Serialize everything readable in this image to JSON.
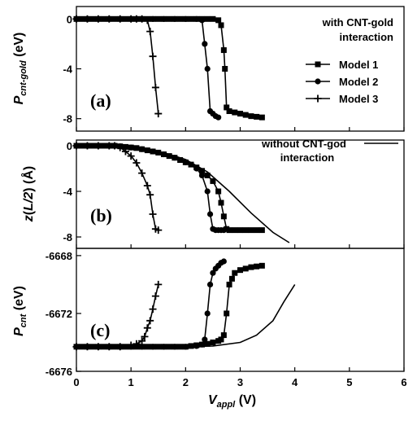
{
  "chart_data": [
    {
      "panel": "(a)",
      "type": "line",
      "ylabel_parts": [
        "P",
        "cnt-gold",
        " (eV)"
      ],
      "xlim": [
        0,
        6
      ],
      "ylim": [
        -9,
        1
      ],
      "yticks": [
        0,
        -4,
        -8
      ],
      "ytick_labels": [
        "0",
        "-4",
        "-8"
      ],
      "legend_title_lines": [
        "with CNT-gold",
        "interaction"
      ],
      "legend_placement": "right",
      "series": [
        {
          "name": "Model 1",
          "marker": "square",
          "x": [
            0,
            0.1,
            0.2,
            0.3,
            0.4,
            0.5,
            0.6,
            0.7,
            0.8,
            0.9,
            1.0,
            1.1,
            1.2,
            1.3,
            1.4,
            1.5,
            1.6,
            1.7,
            1.8,
            1.9,
            2.0,
            2.1,
            2.2,
            2.3,
            2.4,
            2.5,
            2.6,
            2.65,
            2.7,
            2.72,
            2.75,
            2.8,
            2.9,
            3.0,
            3.1,
            3.2,
            3.3,
            3.4
          ],
          "y": [
            0,
            0,
            0,
            0,
            0,
            0,
            0,
            0,
            0,
            0,
            0,
            0,
            0,
            0,
            0,
            0,
            0,
            0,
            0,
            0,
            0,
            0,
            0,
            0,
            0,
            0,
            -0.1,
            -0.5,
            -2.5,
            -4.0,
            -7.1,
            -7.4,
            -7.5,
            -7.6,
            -7.7,
            -7.8,
            -7.85,
            -7.9
          ]
        },
        {
          "name": "Model 2",
          "marker": "circle",
          "x": [
            0,
            0.2,
            0.4,
            0.6,
            0.8,
            1.0,
            1.2,
            1.4,
            1.6,
            1.8,
            2.0,
            2.2,
            2.3,
            2.35,
            2.4,
            2.45,
            2.5,
            2.55,
            2.6
          ],
          "y": [
            0,
            0,
            0,
            0,
            0,
            0,
            0,
            0,
            0,
            0,
            0,
            0,
            -0.1,
            -2.0,
            -4.0,
            -7.4,
            -7.6,
            -7.8,
            -7.9
          ]
        },
        {
          "name": "Model 3",
          "marker": "plus",
          "x": [
            0,
            0.2,
            0.4,
            0.6,
            0.8,
            1.0,
            1.1,
            1.2,
            1.3,
            1.35,
            1.4,
            1.45,
            1.5
          ],
          "y": [
            0,
            0,
            0,
            0,
            0,
            0,
            0,
            0,
            -0.1,
            -1.0,
            -3.0,
            -5.5,
            -7.6
          ]
        }
      ]
    },
    {
      "panel": "(b)",
      "type": "line",
      "ylabel_parts": [
        "z",
        "(",
        "L/2",
        ") (Å)"
      ],
      "xlim": [
        0,
        6
      ],
      "ylim": [
        -9,
        0.5
      ],
      "yticks": [
        0,
        -4,
        -8
      ],
      "ytick_labels": [
        "0",
        "-4",
        "-8"
      ],
      "legend_title_lines": [
        "without CNT-god",
        "interaction"
      ],
      "legend_placement": "top-right",
      "series": [
        {
          "name": "Model 1",
          "marker": "square",
          "x": [
            0,
            0.1,
            0.2,
            0.3,
            0.4,
            0.5,
            0.6,
            0.7,
            0.8,
            0.9,
            1.0,
            1.1,
            1.2,
            1.3,
            1.4,
            1.5,
            1.6,
            1.7,
            1.8,
            1.9,
            2.0,
            2.1,
            2.2,
            2.3,
            2.4,
            2.5,
            2.6,
            2.65,
            2.7,
            2.75,
            2.8,
            2.9,
            3.0,
            3.1,
            3.2,
            3.3,
            3.4
          ],
          "y": [
            0,
            0,
            0,
            0,
            0,
            0,
            0,
            0,
            -0.05,
            -0.1,
            -0.15,
            -0.2,
            -0.3,
            -0.4,
            -0.5,
            -0.6,
            -0.75,
            -0.9,
            -1.05,
            -1.25,
            -1.45,
            -1.65,
            -1.9,
            -2.2,
            -2.6,
            -3.1,
            -4.0,
            -5.0,
            -6.2,
            -7.3,
            -7.4,
            -7.4,
            -7.4,
            -7.4,
            -7.4,
            -7.4,
            -7.4
          ]
        },
        {
          "name": "Model 2",
          "marker": "circle",
          "x": [
            0,
            0.2,
            0.4,
            0.6,
            0.8,
            1.0,
            1.2,
            1.4,
            1.6,
            1.8,
            2.0,
            2.2,
            2.3,
            2.4,
            2.45,
            2.5,
            2.55,
            2.6,
            2.65,
            2.7
          ],
          "y": [
            0,
            0,
            0,
            0,
            -0.05,
            -0.15,
            -0.3,
            -0.5,
            -0.75,
            -1.05,
            -1.45,
            -2.0,
            -2.6,
            -4.0,
            -6.0,
            -7.3,
            -7.4,
            -7.4,
            -7.4,
            -7.4
          ]
        },
        {
          "name": "Model 3",
          "marker": "plus",
          "x": [
            0,
            0.2,
            0.4,
            0.6,
            0.7,
            0.8,
            0.9,
            1.0,
            1.1,
            1.2,
            1.3,
            1.35,
            1.4,
            1.45,
            1.5
          ],
          "y": [
            0,
            0,
            0,
            0,
            0,
            -0.15,
            -0.5,
            -0.9,
            -1.5,
            -2.4,
            -3.5,
            -4.3,
            -6.0,
            -7.3,
            -7.4
          ]
        },
        {
          "name": "without CNT-god interaction",
          "marker": "none",
          "x": [
            0,
            0.8,
            1.2,
            1.6,
            2.0,
            2.4,
            2.8,
            3.2,
            3.6,
            3.9
          ],
          "y": [
            0,
            0,
            -0.25,
            -0.6,
            -1.2,
            -2.3,
            -4.0,
            -5.9,
            -7.6,
            -8.5
          ]
        }
      ]
    },
    {
      "panel": "(c)",
      "type": "line",
      "ylabel_parts": [
        "P",
        "cnt",
        " (eV)"
      ],
      "xlabel_parts": [
        "V",
        "appl",
        " (V)"
      ],
      "xlim": [
        0,
        6
      ],
      "xticks": [
        0,
        1,
        2,
        3,
        4,
        5,
        6
      ],
      "xtick_labels": [
        "0",
        "1",
        "2",
        "3",
        "4",
        "5",
        "6"
      ],
      "ylim": [
        -6676,
        -6667.5
      ],
      "yticks": [
        -6668,
        -6672,
        -6676
      ],
      "ytick_labels": [
        "-6668",
        "-6672",
        "-6676"
      ],
      "series": [
        {
          "name": "Model 1",
          "marker": "square",
          "x": [
            0,
            0.1,
            0.2,
            0.3,
            0.4,
            0.5,
            0.6,
            0.7,
            0.8,
            0.9,
            1.0,
            1.1,
            1.2,
            1.3,
            1.4,
            1.5,
            1.6,
            1.7,
            1.8,
            1.9,
            2.0,
            2.1,
            2.2,
            2.3,
            2.4,
            2.5,
            2.6,
            2.65,
            2.7,
            2.75,
            2.8,
            2.85,
            2.9,
            3.0,
            3.1,
            3.2,
            3.3,
            3.4
          ],
          "y": [
            -6674.3,
            -6674.3,
            -6674.3,
            -6674.3,
            -6674.3,
            -6674.3,
            -6674.3,
            -6674.3,
            -6674.3,
            -6674.3,
            -6674.3,
            -6674.3,
            -6674.3,
            -6674.3,
            -6674.3,
            -6674.3,
            -6674.3,
            -6674.3,
            -6674.3,
            -6674.3,
            -6674.3,
            -6674.25,
            -6674.2,
            -6674.15,
            -6674.1,
            -6674.0,
            -6673.9,
            -6673.8,
            -6673.5,
            -6672.0,
            -6670.0,
            -6669.6,
            -6669.2,
            -6669.0,
            -6668.9,
            -6668.8,
            -6668.75,
            -6668.7
          ]
        },
        {
          "name": "Model 2",
          "marker": "circle",
          "x": [
            0,
            0.2,
            0.4,
            0.6,
            0.8,
            1.0,
            1.2,
            1.4,
            1.6,
            1.8,
            2.0,
            2.2,
            2.3,
            2.35,
            2.4,
            2.45,
            2.5,
            2.55,
            2.6,
            2.65,
            2.7
          ],
          "y": [
            -6674.3,
            -6674.3,
            -6674.3,
            -6674.3,
            -6674.3,
            -6674.3,
            -6674.3,
            -6674.3,
            -6674.3,
            -6674.3,
            -6674.3,
            -6674.25,
            -6674.15,
            -6673.8,
            -6672.0,
            -6670.0,
            -6669.2,
            -6668.9,
            -6668.7,
            -6668.5,
            -6668.4
          ]
        },
        {
          "name": "Model 3",
          "marker": "plus",
          "x": [
            0,
            0.2,
            0.4,
            0.6,
            0.8,
            1.0,
            1.1,
            1.2,
            1.25,
            1.3,
            1.35,
            1.4,
            1.45,
            1.5
          ],
          "y": [
            -6674.3,
            -6674.3,
            -6674.3,
            -6674.3,
            -6674.3,
            -6674.2,
            -6674.1,
            -6673.9,
            -6673.6,
            -6673.0,
            -6672.5,
            -6671.7,
            -6670.8,
            -6670.0
          ]
        },
        {
          "name": "without CNT-god interaction",
          "marker": "none",
          "x": [
            0,
            1.0,
            1.5,
            2.0,
            2.5,
            3.0,
            3.3,
            3.6,
            3.8,
            4.0
          ],
          "y": [
            -6674.3,
            -6674.3,
            -6674.3,
            -6674.3,
            -6674.25,
            -6674.0,
            -6673.5,
            -6672.5,
            -6671.2,
            -6670.0
          ]
        }
      ]
    }
  ]
}
